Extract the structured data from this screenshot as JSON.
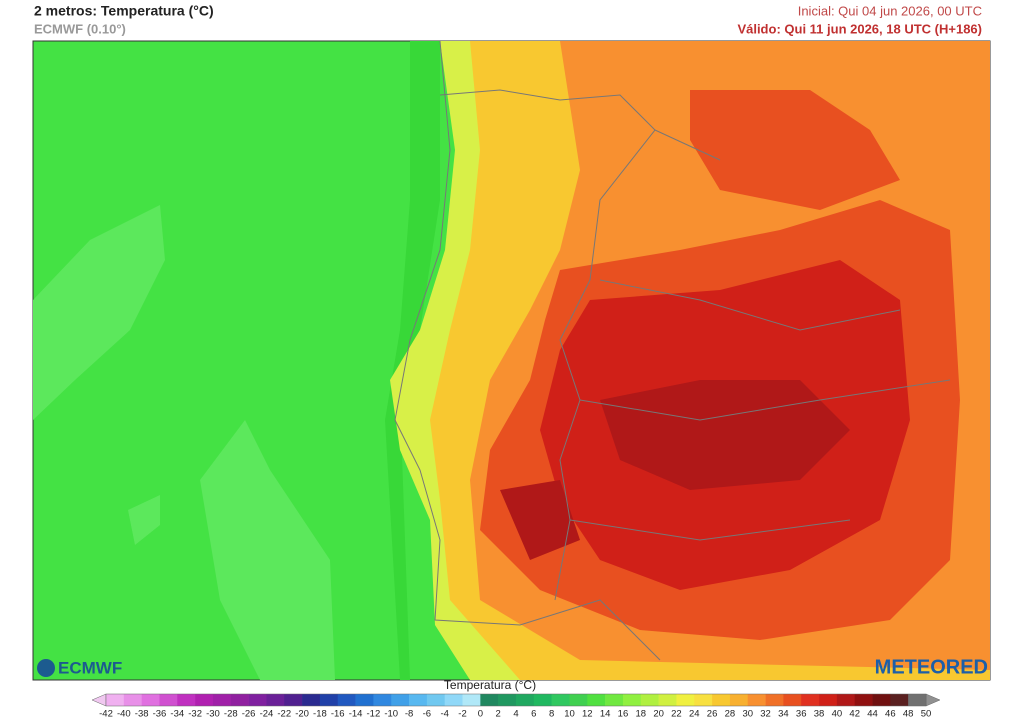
{
  "header": {
    "title": "2 metros: Temperatura (°C)",
    "model": "ECMWF (0.10°)",
    "initial": "Inicial: Qui 04 jun 2026, 00 UTC",
    "valid": "Válido: Qui 11 jun 2026, 18 UTC (H+186)"
  },
  "logos": {
    "left": "ECMWF",
    "right": "METEORED"
  },
  "legend": {
    "label": "Temperatura (°C)",
    "ticks": [
      -42,
      -40,
      -38,
      -36,
      -34,
      -32,
      -30,
      -28,
      -26,
      -24,
      -22,
      -20,
      -18,
      -16,
      -14,
      -12,
      -10,
      -8,
      -6,
      -4,
      -2,
      0,
      2,
      4,
      6,
      8,
      10,
      12,
      14,
      16,
      18,
      20,
      22,
      24,
      26,
      28,
      30,
      32,
      34,
      36,
      38,
      40,
      42,
      44,
      46,
      48,
      50
    ],
    "colors": [
      "#f0c8f0",
      "#f0b0f0",
      "#e890e8",
      "#e070e0",
      "#d050d0",
      "#c030c0",
      "#b020b0",
      "#a020a8",
      "#9020a0",
      "#8020a0",
      "#6a2098",
      "#502090",
      "#2a2a90",
      "#2040a8",
      "#2058c0",
      "#2070d0",
      "#3088e0",
      "#40a0e8",
      "#58b8f0",
      "#70c8f0",
      "#90d8f8",
      "#b0e8f8",
      "#208860",
      "#209860",
      "#20a860",
      "#20b860",
      "#30c860",
      "#40d050",
      "#50e040",
      "#70e840",
      "#90f040",
      "#b0f040",
      "#d0f040",
      "#f0f040",
      "#f8e040",
      "#f8c830",
      "#f8b030",
      "#f89030",
      "#f07028",
      "#e85020",
      "#e03020",
      "#d02018",
      "#b01818",
      "#901010",
      "#701010",
      "#5a2020",
      "#707070",
      "#909090"
    ]
  }
}
